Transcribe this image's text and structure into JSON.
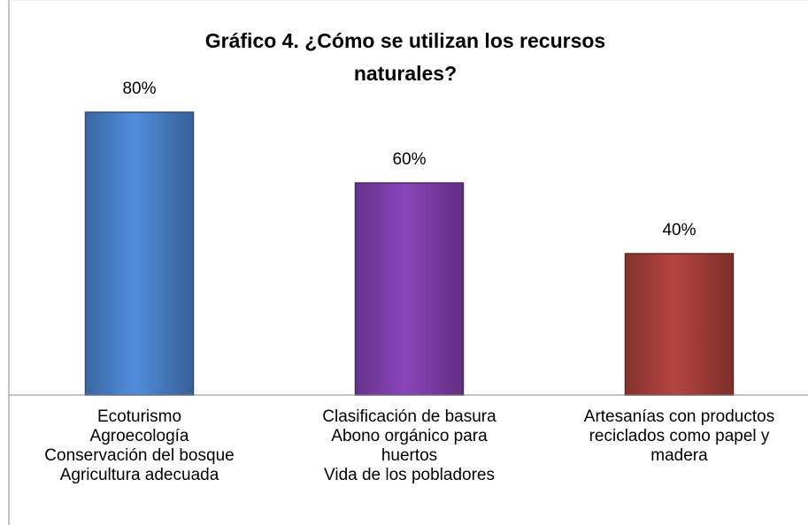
{
  "chart_data": {
    "type": "bar",
    "title": [
      "Gráfico 4. ¿Cómo se utilizan los recursos",
      "naturales?"
    ],
    "categories": [
      [
        "Ecoturismo",
        "Agroecología",
        "Conservación del bosque",
        "Agricultura adecuada"
      ],
      [
        "Clasificación de basura",
        "Abono orgánico para",
        "huertos",
        "Vida de los pobladores"
      ],
      [
        "Artesanías con productos",
        "reciclados como papel y",
        "madera"
      ]
    ],
    "values": [
      80,
      60,
      40
    ],
    "value_labels": [
      "80%",
      "60%",
      "40%"
    ],
    "colors": [
      "#4a80c9",
      "#7e3fab",
      "#a53e3b"
    ],
    "ylim": [
      0,
      100
    ]
  }
}
